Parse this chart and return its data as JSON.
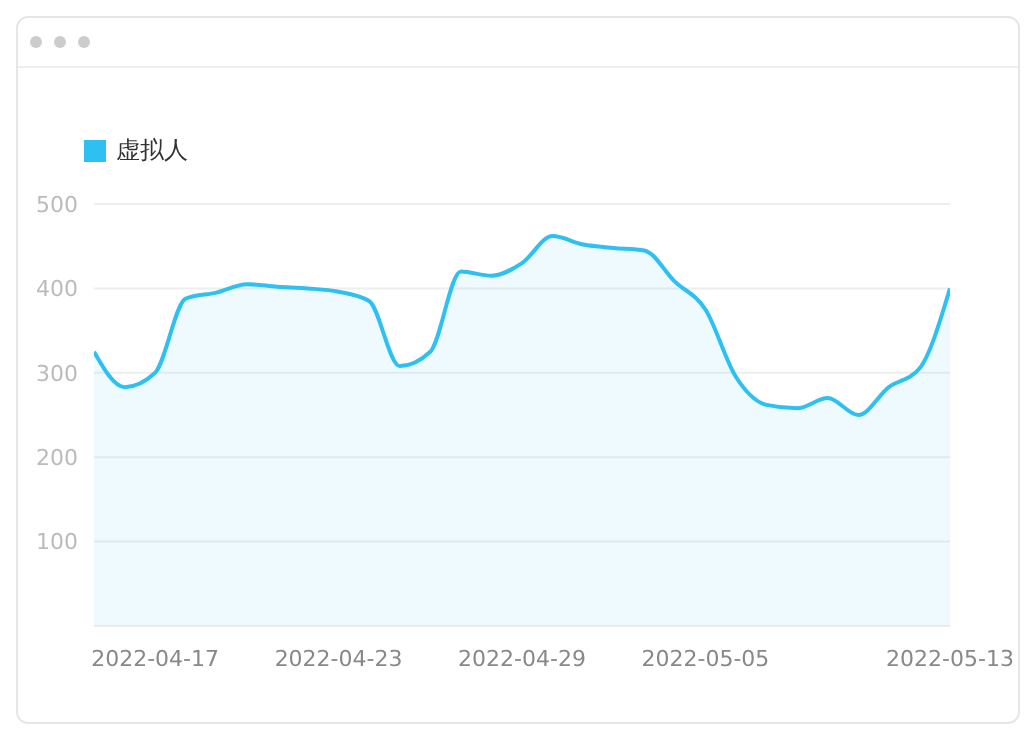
{
  "chart_data": {
    "type": "area",
    "x": [
      "2022-04-15",
      "2022-04-16",
      "2022-04-17",
      "2022-04-18",
      "2022-04-19",
      "2022-04-20",
      "2022-04-21",
      "2022-04-22",
      "2022-04-23",
      "2022-04-24",
      "2022-04-25",
      "2022-04-26",
      "2022-04-27",
      "2022-04-28",
      "2022-04-29",
      "2022-04-30",
      "2022-05-01",
      "2022-05-02",
      "2022-05-03",
      "2022-05-04",
      "2022-05-05",
      "2022-05-06",
      "2022-05-07",
      "2022-05-08",
      "2022-05-09",
      "2022-05-10",
      "2022-05-11",
      "2022-05-12",
      "2022-05-13"
    ],
    "series": [
      {
        "name": "虚拟人",
        "color": "#2ec0f0",
        "values": [
          325,
          283,
          300,
          388,
          395,
          405,
          402,
          400,
          396,
          385,
          308,
          325,
          420,
          415,
          430,
          462,
          452,
          448,
          445,
          408,
          375,
          295,
          262,
          258,
          270,
          250,
          283,
          305,
          400
        ]
      }
    ],
    "xlim": [
      "2022-04-15",
      "2022-05-13"
    ],
    "xticks": [
      "2022-04-17",
      "2022-04-23",
      "2022-04-29",
      "2022-05-05",
      "2022-05-13"
    ],
    "ylim": [
      0,
      500
    ],
    "yticks": [
      100,
      200,
      300,
      400,
      500
    ],
    "grid": "y",
    "legend": "top left",
    "marker": "none"
  }
}
